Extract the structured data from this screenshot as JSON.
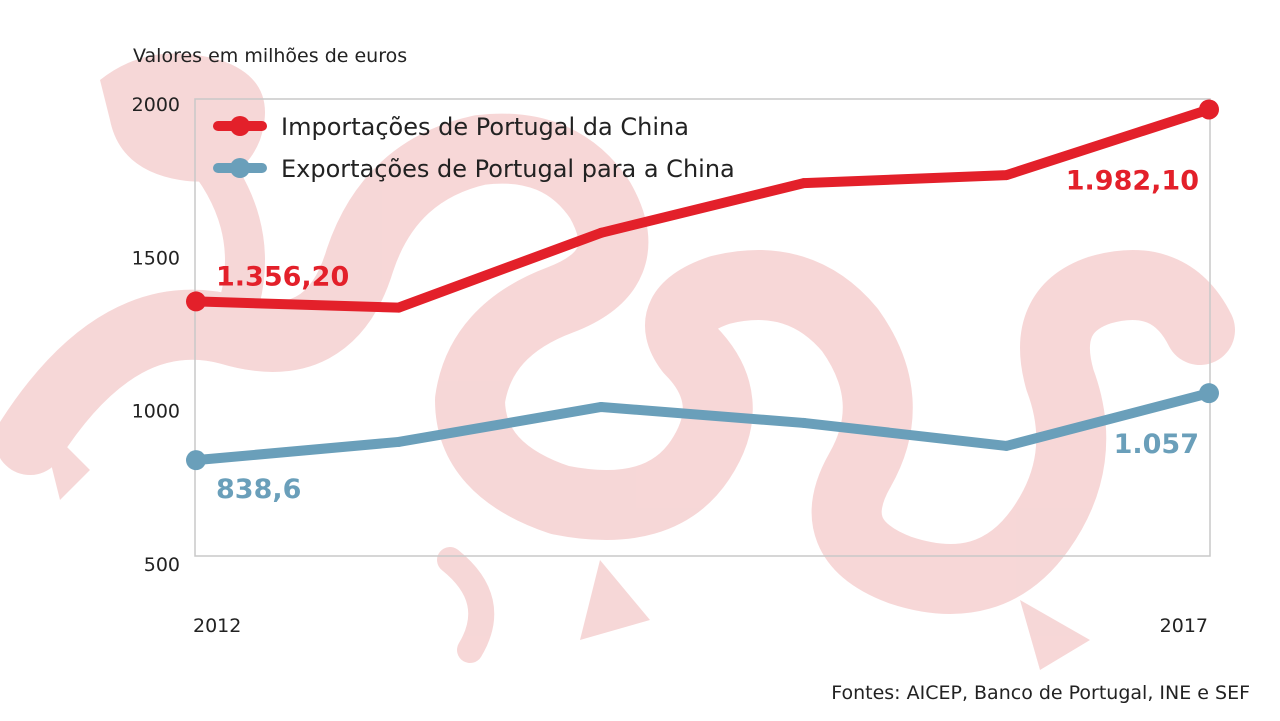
{
  "chart_data": {
    "type": "line",
    "unit_note": "Valores em milhões de euros",
    "x": [
      2012,
      2013,
      2014,
      2015,
      2016,
      2017
    ],
    "x_tick_labels": [
      "2012",
      "2017"
    ],
    "ylim": [
      500,
      2000
    ],
    "y_ticks": [
      500,
      1000,
      1500,
      2000
    ],
    "grid": false,
    "legend_position": "top-left",
    "series": [
      {
        "name": "Importações de Portugal da China",
        "color": "#e3202a",
        "values": [
          1356.2,
          1336,
          1580,
          1742,
          1768,
          1982.1
        ],
        "labels": [
          {
            "index": 0,
            "text": "1.356,20"
          },
          {
            "index": 5,
            "text": "1.982,10"
          }
        ]
      },
      {
        "name": "Exportações de Portugal para a China",
        "color": "#6a9fba",
        "values": [
          838.6,
          898,
          1012,
          960,
          885,
          1057
        ],
        "labels": [
          {
            "index": 0,
            "text": "838,6"
          },
          {
            "index": 5,
            "text": "1.057"
          }
        ]
      }
    ],
    "source": "Fontes: AICEP, Banco de Portugal, INE e SEF"
  },
  "colors": {
    "dragon_watermark": "#f6d3d3",
    "axis_frame": "#c8c8c8",
    "text": "#222222"
  },
  "decoration": {
    "watermark_icon": "dragon-icon"
  }
}
